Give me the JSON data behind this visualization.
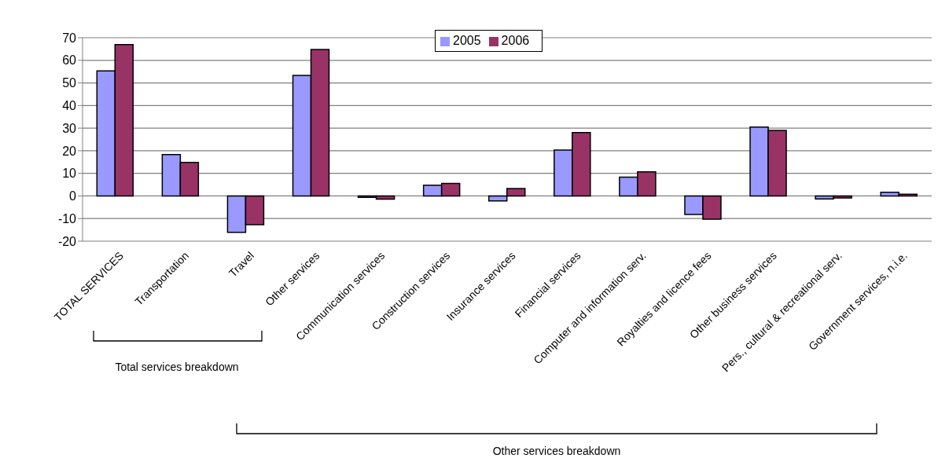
{
  "chart_data": {
    "type": "bar",
    "categories": [
      "TOTAL SERVICES",
      "Transportation",
      "Travel",
      "Other services",
      "Communication services",
      "Construction services",
      "Insurance services",
      "Financial services",
      "Computer and information serv.",
      "Royalties and licence fees",
      "Other business services",
      "Pers., cultural & recreational serv.",
      "Government services, n.i.e."
    ],
    "series": [
      {
        "name": "2005",
        "color": "#9999ff",
        "values": [
          55.3,
          18.3,
          -16.1,
          53.3,
          -0.6,
          4.8,
          -2.2,
          20.3,
          8.3,
          -8.2,
          30.5,
          -1.3,
          1.6
        ]
      },
      {
        "name": "2006",
        "color": "#993366",
        "values": [
          67,
          14.8,
          -12.7,
          64.8,
          -1.4,
          5.5,
          3.3,
          28,
          10.7,
          -10.3,
          29,
          -0.9,
          0.8
        ]
      }
    ],
    "ylim": [
      -20,
      70
    ],
    "yticks": [
      -20,
      -10,
      0,
      10,
      20,
      30,
      40,
      50,
      60,
      70
    ],
    "grid": "y",
    "legend": "top",
    "annotations": [
      "Total services breakdown",
      "Other services breakdown"
    ]
  }
}
